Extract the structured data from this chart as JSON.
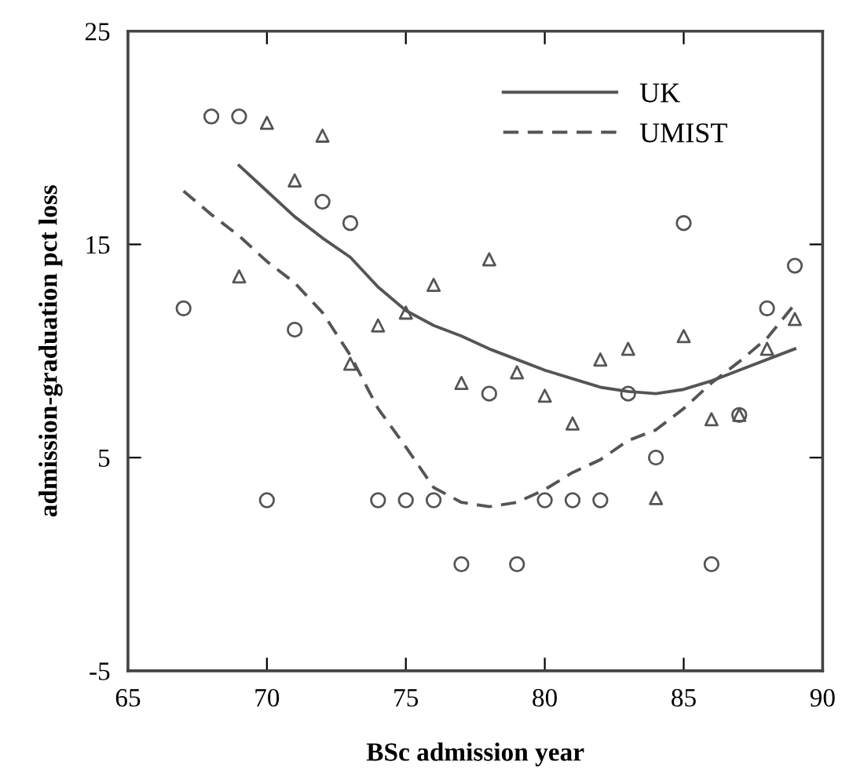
{
  "chart_data": {
    "type": "scatter",
    "xlabel": "BSc admission year",
    "ylabel": "admission-graduation pct loss",
    "xlim": [
      65,
      90
    ],
    "xticks": [
      65,
      70,
      75,
      80,
      85,
      90
    ],
    "ylim": [
      -5,
      25
    ],
    "yticks": [
      -5,
      5,
      15,
      25
    ],
    "grid": false,
    "legend": "top right",
    "series": [
      {
        "marker": "circle",
        "color": "#555555",
        "x": [
          67,
          68,
          69,
          70,
          71,
          72,
          73,
          74,
          75,
          76,
          77,
          78,
          79,
          80,
          81,
          82,
          83,
          84,
          85,
          86,
          87,
          88,
          89
        ],
        "values": [
          12,
          21,
          21,
          3,
          11,
          17,
          16,
          3,
          3,
          3,
          0,
          8,
          0,
          3,
          3,
          3,
          8,
          5,
          16,
          0,
          7,
          12,
          14
        ]
      },
      {
        "marker": "triangle",
        "color": "#555555",
        "x": [
          69,
          70,
          71,
          72,
          73,
          74,
          75,
          76,
          77,
          78,
          79,
          80,
          81,
          82,
          83,
          84,
          85,
          86,
          87,
          88,
          89
        ],
        "values": [
          13.5,
          20.7,
          18,
          20.1,
          9.4,
          11.2,
          11.8,
          13.1,
          8.5,
          14.3,
          9,
          7.9,
          6.6,
          9.6,
          10.1,
          3.1,
          10.7,
          6.8,
          7,
          10.1,
          11.5
        ]
      },
      {
        "type": "line",
        "name": "UK",
        "line_style": "solid",
        "marker": "none",
        "color": "#555555",
        "x": [
          69,
          70,
          71,
          72,
          73,
          74,
          75,
          76,
          77,
          78,
          79,
          80,
          81,
          82,
          83,
          84,
          85,
          86,
          87,
          88,
          89
        ],
        "values": [
          18.7,
          17.5,
          16.3,
          15.3,
          14.4,
          13,
          11.9,
          11.2,
          10.7,
          10.1,
          9.6,
          9.1,
          8.7,
          8.3,
          8.1,
          8,
          8.2,
          8.6,
          9.1,
          9.6,
          10.1
        ]
      },
      {
        "type": "line",
        "name": "UMIST",
        "line_style": "dashed",
        "marker": "none",
        "color": "#555555",
        "x": [
          67,
          68,
          69,
          70,
          71,
          72,
          73,
          74,
          75,
          76,
          77,
          78,
          79,
          80,
          81,
          82,
          83,
          84,
          85,
          86,
          87,
          88,
          89
        ],
        "values": [
          17.5,
          16.4,
          15.4,
          14.2,
          13.2,
          11.8,
          9.8,
          7.3,
          5.5,
          3.6,
          2.9,
          2.7,
          2.9,
          3.5,
          4.3,
          4.9,
          5.8,
          6.3,
          7.3,
          8.5,
          9.5,
          10.6,
          12.2
        ]
      }
    ]
  }
}
